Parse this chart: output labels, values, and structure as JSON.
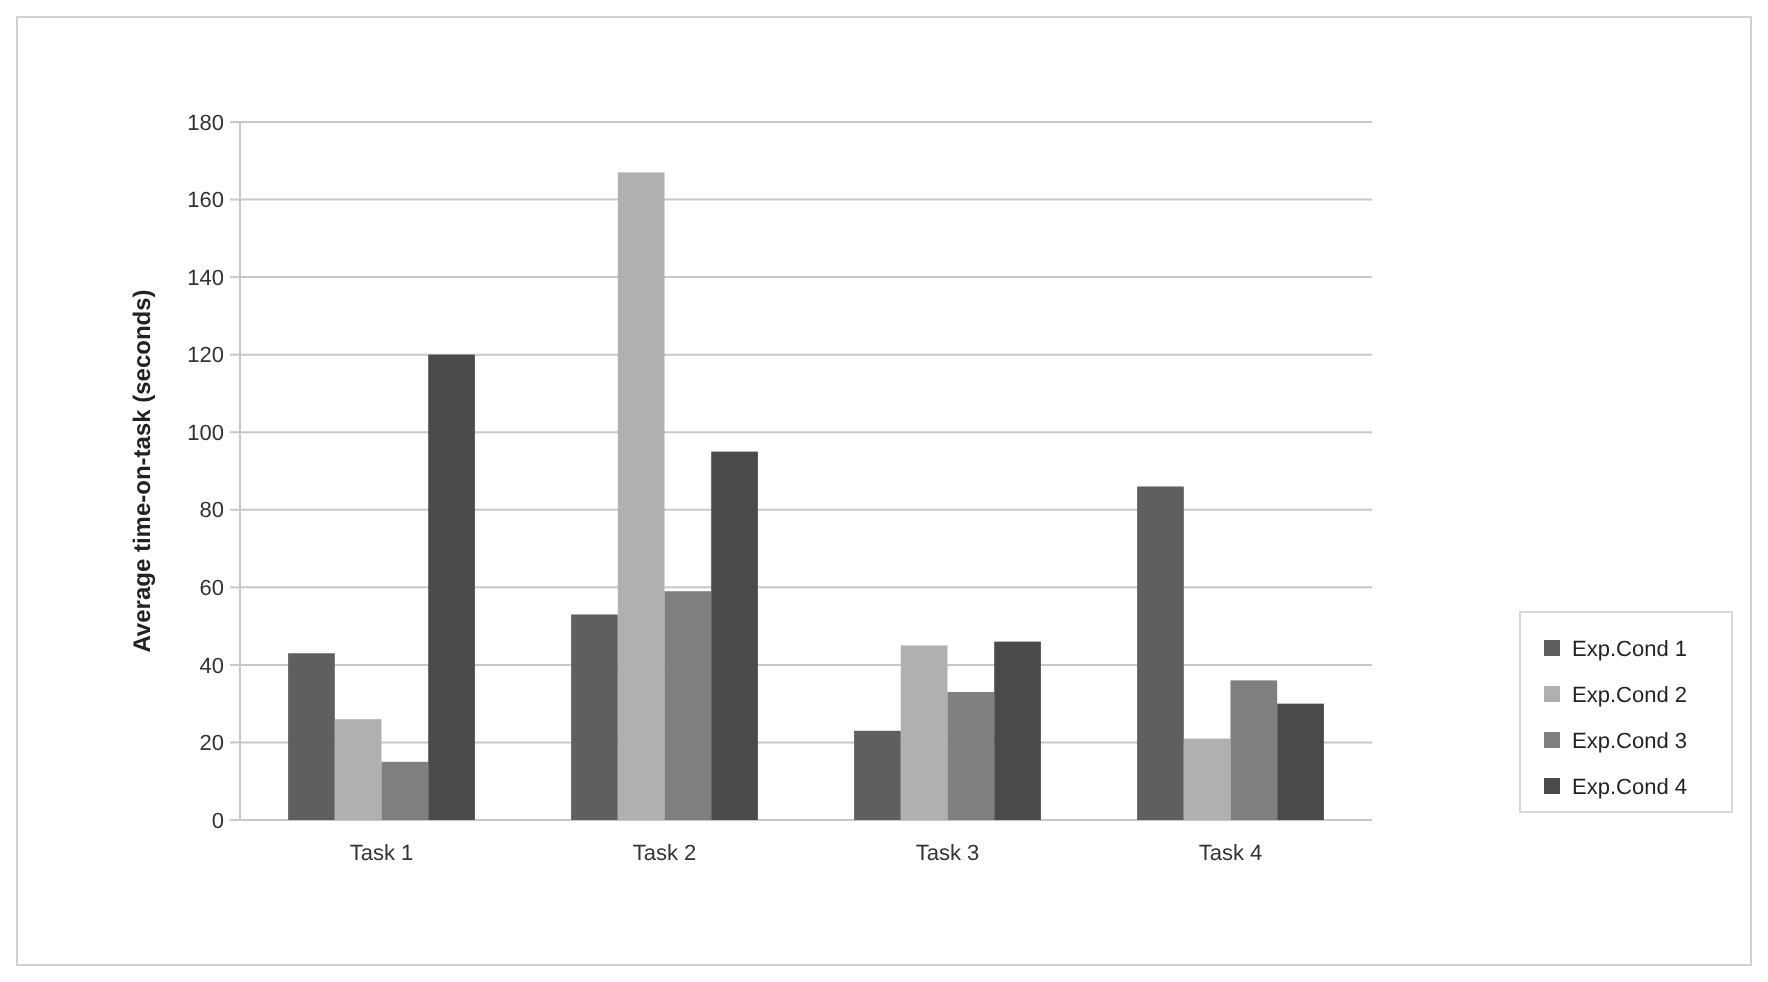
{
  "chart_data": {
    "type": "bar",
    "ylabel": "Average time-on-task (seconds)",
    "categories": [
      "Task 1",
      "Task 2",
      "Task 3",
      "Task 4"
    ],
    "series": [
      {
        "name": "Exp.Cond 1",
        "color": "#5f5f5f",
        "values": [
          43,
          53,
          23,
          86
        ]
      },
      {
        "name": "Exp.Cond 2",
        "color": "#b0b0b0",
        "values": [
          26,
          167,
          45,
          21
        ]
      },
      {
        "name": "Exp.Cond 3",
        "color": "#7f7f7f",
        "values": [
          15,
          59,
          33,
          36
        ]
      },
      {
        "name": "Exp.Cond 4",
        "color": "#4a4a4a",
        "values": [
          120,
          95,
          46,
          30
        ]
      }
    ],
    "ylim": [
      0,
      180
    ],
    "yticks": [
      0,
      20,
      40,
      60,
      80,
      100,
      120,
      140,
      160,
      180
    ],
    "grid": "y",
    "legend": "right"
  }
}
